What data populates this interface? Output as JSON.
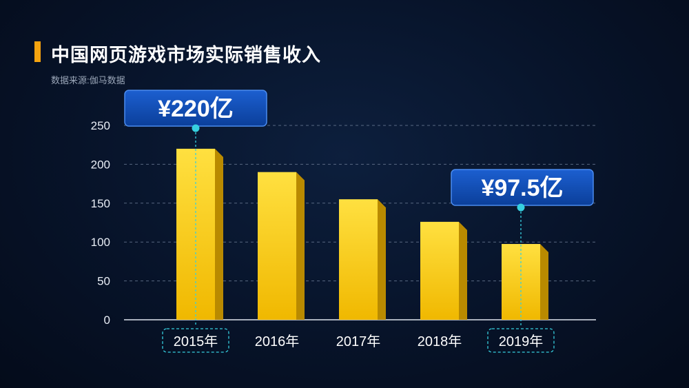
{
  "title": "中国网页游戏市场实际销售收入",
  "source": "数据来源:伽马数据",
  "chart_data": {
    "type": "bar",
    "categories": [
      "2015年",
      "2016年",
      "2017年",
      "2018年",
      "2019年"
    ],
    "values": [
      220,
      190,
      155,
      126,
      97.5
    ],
    "ylim": [
      0,
      250
    ],
    "yticks": [
      "0",
      "50",
      "100",
      "150",
      "200",
      "250"
    ],
    "grid": true,
    "highlighted_categories": [
      "2015年",
      "2019年"
    ],
    "callouts": [
      {
        "index": 0,
        "label": "¥220亿"
      },
      {
        "index": 4,
        "label": "¥97.5亿"
      }
    ],
    "colors": {
      "bar": "#f7c300",
      "bar_side": "#b98a00",
      "callout": "#0a4aa8",
      "accent": "#36d0e0"
    }
  }
}
